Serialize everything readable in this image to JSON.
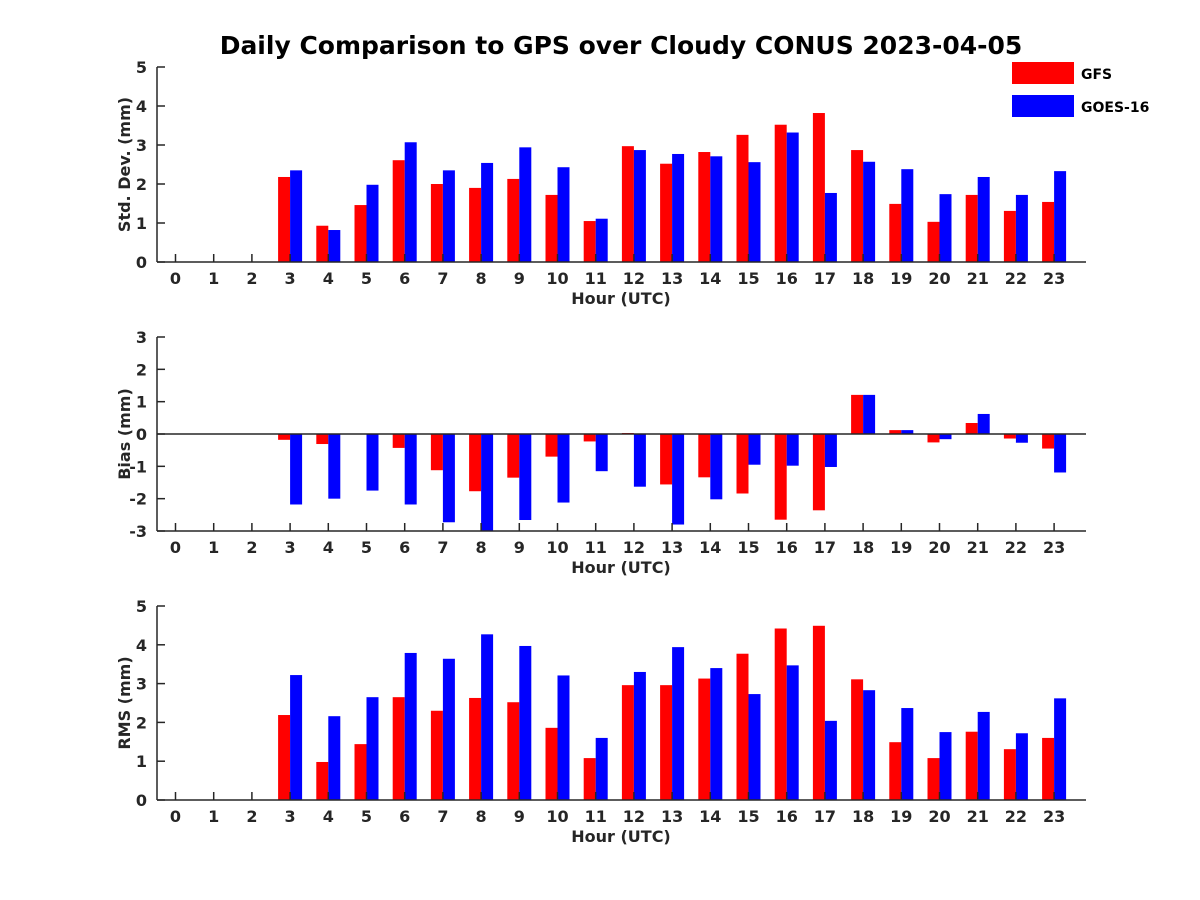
{
  "title": "Daily Comparison to GPS over Cloudy CONUS 2023-04-05",
  "colors": {
    "gfs": "#ff0000",
    "goes": "#0000ff"
  },
  "legend": [
    {
      "name": "GFS",
      "color": "#ff0000"
    },
    {
      "name": "GOES-16",
      "color": "#0000ff"
    }
  ],
  "chart_data": [
    {
      "type": "bar",
      "ylabel": "Std. Dev. (mm)",
      "xlabel": "Hour (UTC)",
      "ylim": [
        0,
        5
      ],
      "yticks": [
        0,
        1,
        2,
        3,
        4,
        5
      ],
      "categories": [
        "0",
        "1",
        "2",
        "3",
        "4",
        "5",
        "6",
        "7",
        "8",
        "9",
        "10",
        "11",
        "12",
        "13",
        "14",
        "15",
        "16",
        "17",
        "18",
        "19",
        "20",
        "21",
        "22",
        "23"
      ],
      "series": [
        {
          "name": "GFS",
          "values": [
            null,
            null,
            null,
            2.18,
            0.93,
            1.46,
            2.61,
            2.0,
            1.9,
            2.13,
            1.72,
            1.05,
            2.97,
            2.52,
            2.82,
            3.26,
            3.52,
            3.82,
            2.87,
            1.49,
            1.03,
            1.72,
            1.31,
            1.54
          ]
        },
        {
          "name": "GOES-16",
          "values": [
            null,
            null,
            null,
            2.35,
            0.82,
            1.98,
            3.07,
            2.35,
            2.54,
            2.94,
            2.43,
            1.11,
            2.87,
            2.77,
            2.71,
            2.56,
            3.32,
            1.77,
            2.57,
            2.38,
            1.74,
            2.18,
            1.72,
            2.33
          ]
        }
      ]
    },
    {
      "type": "bar",
      "ylabel": "Bias (mm)",
      "xlabel": "Hour (UTC)",
      "ylim": [
        -3,
        3
      ],
      "yticks": [
        -3,
        -2,
        -1,
        0,
        1,
        2,
        3
      ],
      "categories": [
        "0",
        "1",
        "2",
        "3",
        "4",
        "5",
        "6",
        "7",
        "8",
        "9",
        "10",
        "11",
        "12",
        "13",
        "14",
        "15",
        "16",
        "17",
        "18",
        "19",
        "20",
        "21",
        "22",
        "23"
      ],
      "series": [
        {
          "name": "GFS",
          "values": [
            null,
            null,
            null,
            -0.18,
            -0.31,
            0,
            -0.43,
            -1.12,
            -1.77,
            -1.35,
            -0.7,
            -0.23,
            0.03,
            -1.56,
            -1.34,
            -1.84,
            -2.65,
            -2.36,
            1.21,
            0.12,
            -0.26,
            0.34,
            -0.14,
            -0.45
          ]
        },
        {
          "name": "GOES-16",
          "values": [
            null,
            null,
            null,
            -2.18,
            -2.0,
            -1.75,
            -2.18,
            -2.73,
            -3.0,
            -2.66,
            -2.12,
            -1.15,
            -1.63,
            -2.8,
            -2.02,
            -0.95,
            -0.98,
            -1.02,
            1.21,
            0.12,
            -0.16,
            0.62,
            -0.27,
            -1.19
          ]
        }
      ]
    },
    {
      "type": "bar",
      "ylabel": "RMS (mm)",
      "xlabel": "Hour (UTC)",
      "ylim": [
        0,
        5
      ],
      "yticks": [
        0,
        1,
        2,
        3,
        4,
        5
      ],
      "categories": [
        "0",
        "1",
        "2",
        "3",
        "4",
        "5",
        "6",
        "7",
        "8",
        "9",
        "10",
        "11",
        "12",
        "13",
        "14",
        "15",
        "16",
        "17",
        "18",
        "19",
        "20",
        "21",
        "22",
        "23"
      ],
      "series": [
        {
          "name": "GFS",
          "values": [
            null,
            null,
            null,
            2.19,
            0.98,
            1.44,
            2.65,
            2.3,
            2.63,
            2.52,
            1.86,
            1.08,
            2.96,
            2.96,
            3.13,
            3.77,
            4.42,
            4.49,
            3.11,
            1.49,
            1.08,
            1.76,
            1.31,
            1.6
          ]
        },
        {
          "name": "GOES-16",
          "values": [
            null,
            null,
            null,
            3.22,
            2.16,
            2.65,
            3.79,
            3.64,
            4.27,
            3.97,
            3.21,
            1.6,
            3.3,
            3.94,
            3.4,
            2.73,
            3.47,
            2.04,
            2.83,
            2.37,
            1.75,
            2.27,
            1.72,
            2.62
          ]
        }
      ]
    }
  ]
}
